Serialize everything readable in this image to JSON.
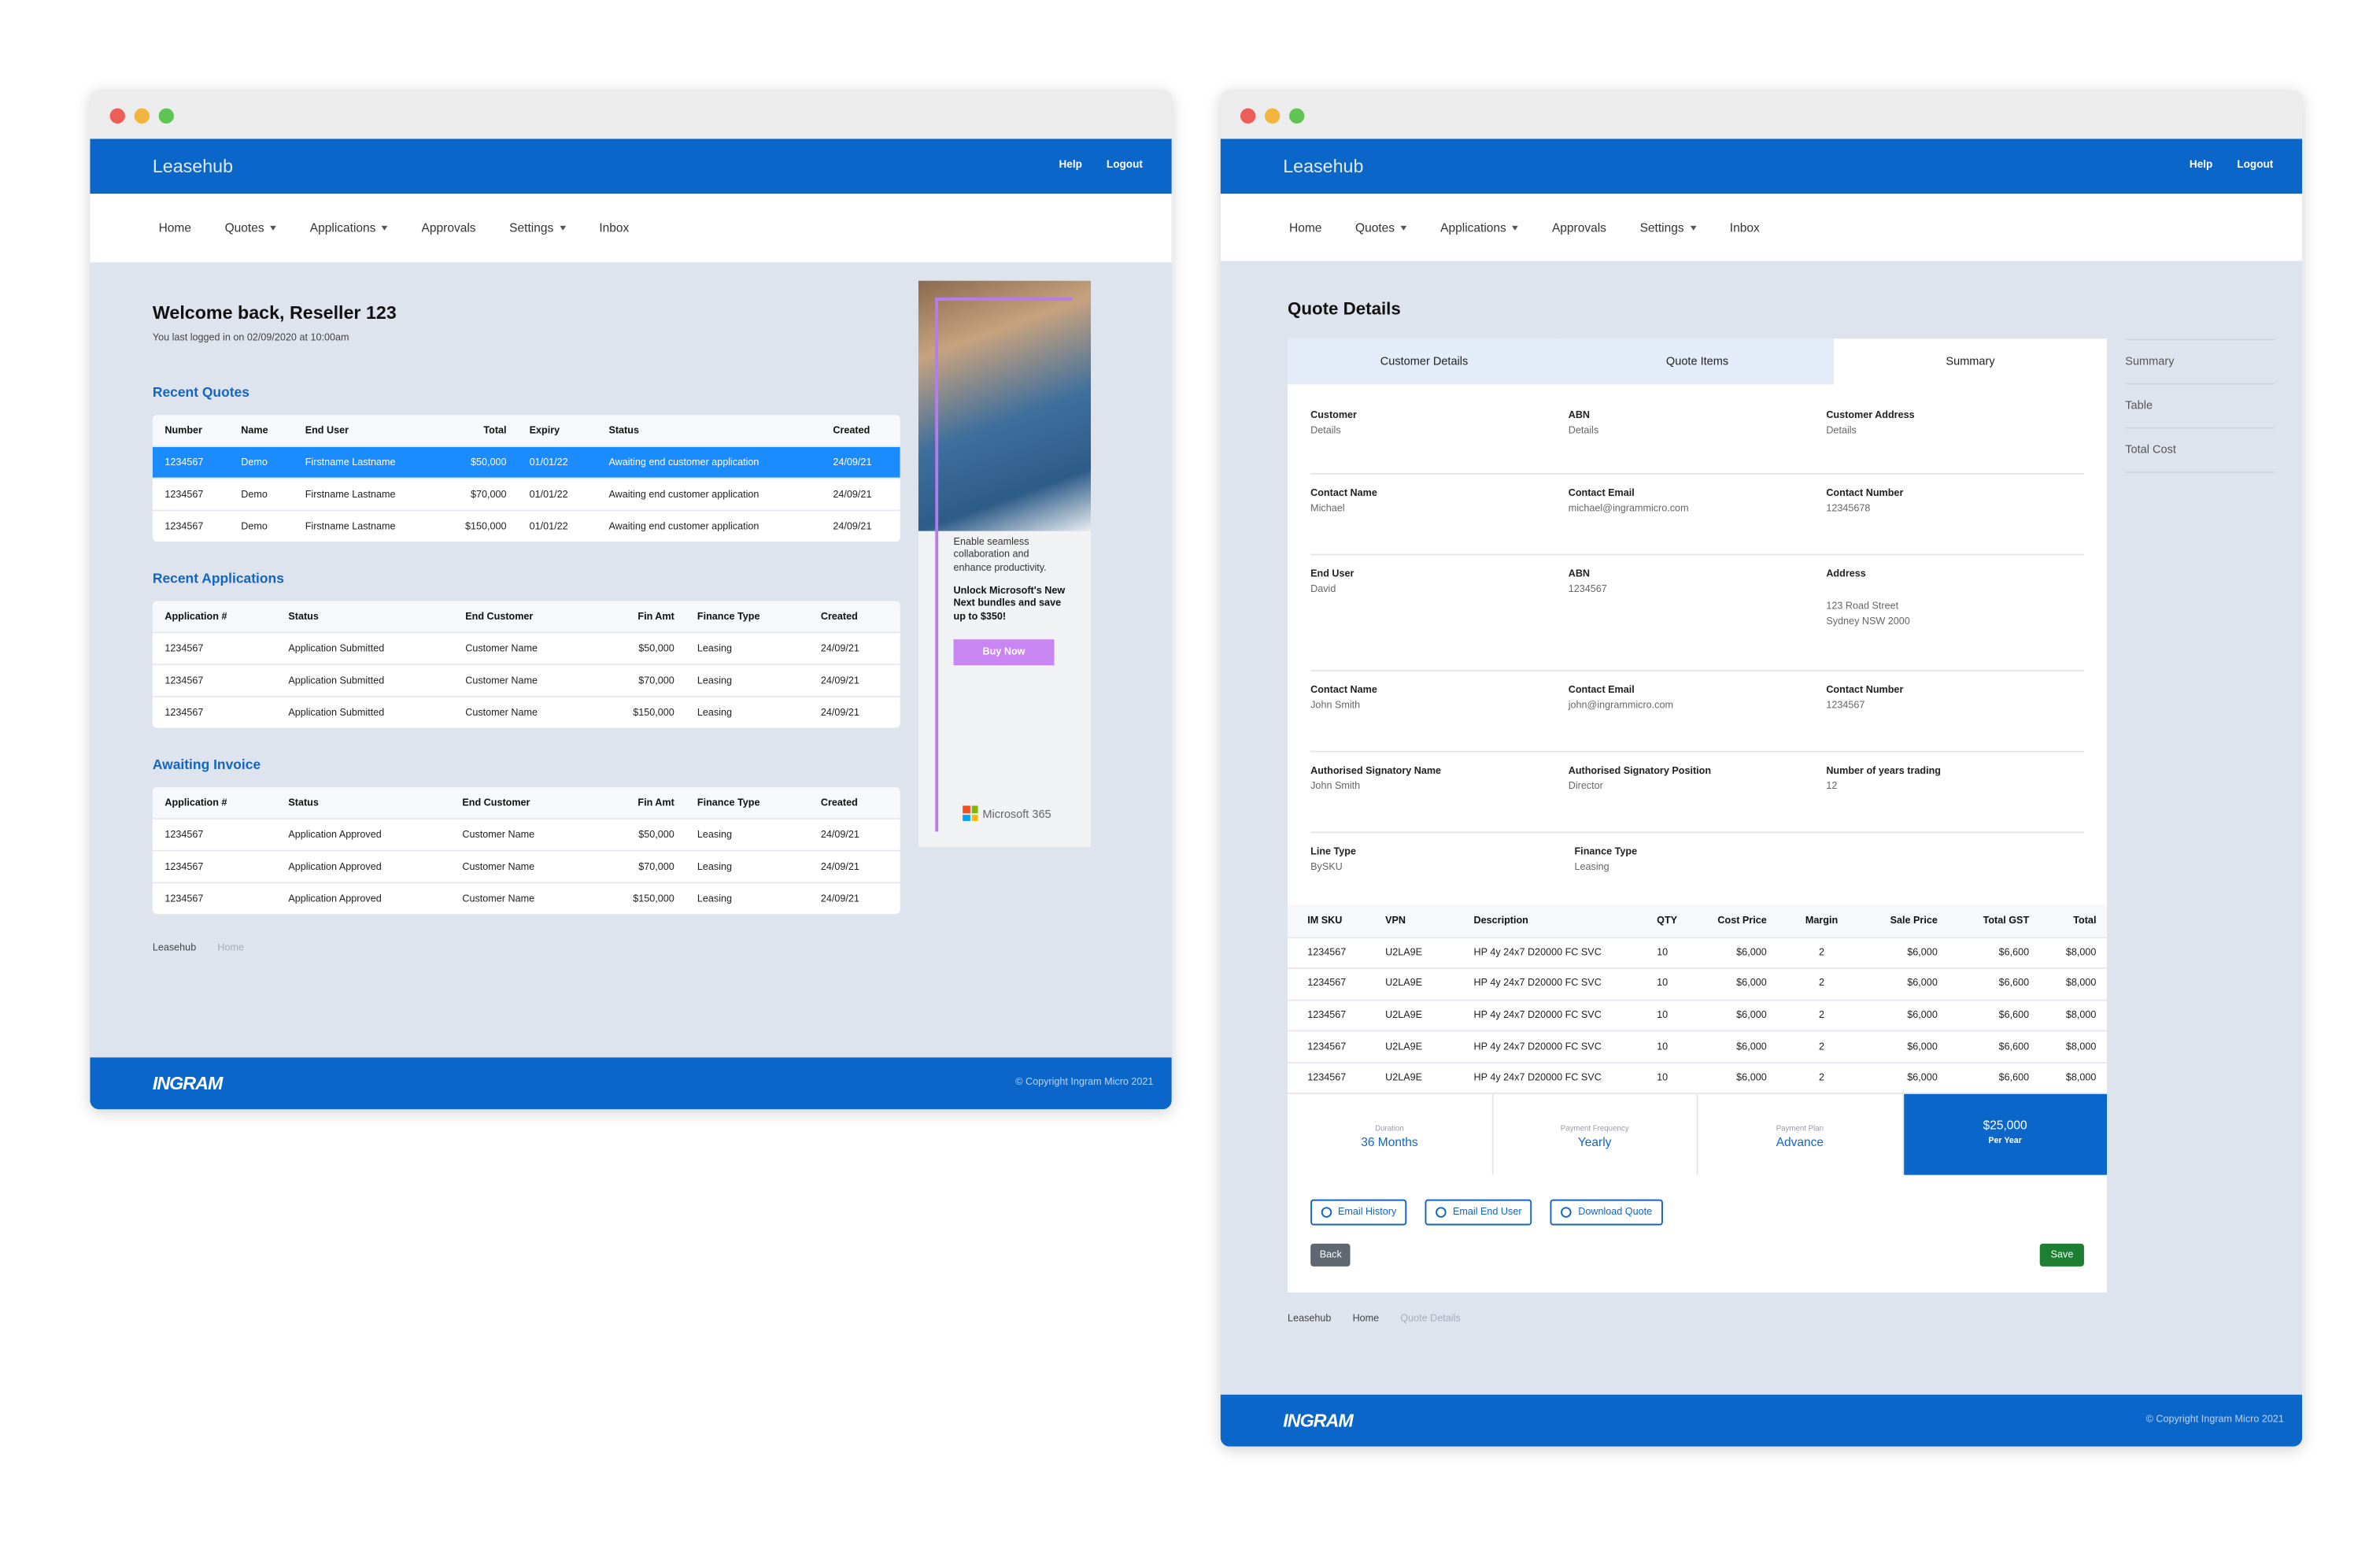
{
  "dashboard": {
    "brand": "Leasehub",
    "header_links": [
      "Help",
      "Logout"
    ],
    "nav": [
      "Home",
      "Quotes",
      "Applications",
      "Approvals",
      "Settings",
      "Inbox"
    ],
    "welcome": "Welcome back, Reseller 123",
    "last_login": "You last logged in on 02/09/2020 at 10:00am",
    "recent_quotes": {
      "title": "Recent Quotes",
      "columns": [
        "Number",
        "Name",
        "End User",
        "Total",
        "Expiry",
        "Status",
        "Created"
      ],
      "rows": [
        [
          "1234567",
          "Demo",
          "Firstname Lastname",
          "$50,000",
          "01/01/22",
          "Awaiting end customer application",
          "24/09/21"
        ],
        [
          "1234567",
          "Demo",
          "Firstname Lastname",
          "$70,000",
          "01/01/22",
          "Awaiting end customer application",
          "24/09/21"
        ],
        [
          "1234567",
          "Demo",
          "Firstname Lastname",
          "$150,000",
          "01/01/22",
          "Awaiting end customer application",
          "24/09/21"
        ]
      ]
    },
    "recent_applications": {
      "title": "Recent Applications",
      "columns": [
        "Application #",
        "Status",
        "End Customer",
        "Fin Amt",
        "Finance Type",
        "Created"
      ],
      "rows": [
        [
          "1234567",
          "Application Submitted",
          "Customer Name",
          "$50,000",
          "Leasing",
          "24/09/21"
        ],
        [
          "1234567",
          "Application Submitted",
          "Customer Name",
          "$70,000",
          "Leasing",
          "24/09/21"
        ],
        [
          "1234567",
          "Application Submitted",
          "Customer Name",
          "$150,000",
          "Leasing",
          "24/09/21"
        ]
      ]
    },
    "awaiting_invoice": {
      "title": "Awaiting Invoice",
      "columns": [
        "Application #",
        "Status",
        "End Customer",
        "Fin Amt",
        "Finance Type",
        "Created"
      ],
      "rows": [
        [
          "1234567",
          "Application Approved",
          "Customer Name",
          "$50,000",
          "Leasing",
          "24/09/21"
        ],
        [
          "1234567",
          "Application Approved",
          "Customer Name",
          "$70,000",
          "Leasing",
          "24/09/21"
        ],
        [
          "1234567",
          "Application Approved",
          "Customer Name",
          "$150,000",
          "Leasing",
          "24/09/21"
        ]
      ]
    },
    "breadcrumb": [
      "Leasehub",
      "Home"
    ],
    "ad": {
      "text": "Enable seamless collaboration and enhance productivity.",
      "offer": "Unlock Microsoft's New Next bundles and save up to $350!",
      "button": "Buy Now",
      "brand": "Microsoft 365"
    },
    "footer": {
      "logo": "INGRAM",
      "copyright": "© Copyright Ingram Micro 2021"
    }
  },
  "quote": {
    "brand": "Leasehub",
    "header_links": [
      "Help",
      "Logout"
    ],
    "nav": [
      "Home",
      "Quotes",
      "Applications",
      "Approvals",
      "Settings",
      "Inbox"
    ],
    "title": "Quote Details",
    "tabs": [
      "Customer Details",
      "Quote Items",
      "Summary"
    ],
    "side_nav": [
      "Summary",
      "Table",
      "Total Cost"
    ],
    "fields": [
      [
        {
          "label": "Customer",
          "value": "Details"
        },
        {
          "label": "ABN",
          "value": "Details"
        },
        {
          "label": "Customer Address",
          "value": "Details"
        }
      ],
      [
        {
          "label": "Contact Name",
          "value": "Michael"
        },
        {
          "label": "Contact Email",
          "value": "michael@ingrammicro.com"
        },
        {
          "label": "Contact Number",
          "value": "12345678"
        }
      ],
      [
        {
          "label": "End User",
          "value": "David"
        },
        {
          "label": "ABN",
          "value": "1234567"
        },
        {
          "label": "Address",
          "lines": [
            "123 Road Street",
            "Sydney NSW 2000"
          ]
        }
      ],
      [
        {
          "label": "Contact Name",
          "value": "John Smith"
        },
        {
          "label": "Contact Email",
          "value": "john@ingrammicro.com"
        },
        {
          "label": "Contact Number",
          "value": "1234567"
        }
      ],
      [
        {
          "label": "Authorised Signatory Name",
          "value": "John Smith"
        },
        {
          "label": "Authorised Signatory Position",
          "value": "Director"
        },
        {
          "label": "Number of years trading",
          "value": "12"
        }
      ],
      [
        {
          "label": "Line Type",
          "value": "BySKU"
        },
        {
          "label": "Finance Type",
          "value": "Leasing"
        }
      ]
    ],
    "items": {
      "columns": [
        "IM SKU",
        "VPN",
        "Description",
        "QTY",
        "Cost Price",
        "Margin",
        "Sale Price",
        "Total GST",
        "Total"
      ],
      "rows": [
        [
          "1234567",
          "U2LA9E",
          "HP 4y 24x7 D20000 FC SVC",
          "10",
          "$6,000",
          "2",
          "$6,000",
          "$6,600",
          "$8,000"
        ],
        [
          "1234567",
          "U2LA9E",
          "HP 4y 24x7 D20000 FC SVC",
          "10",
          "$6,000",
          "2",
          "$6,000",
          "$6,600",
          "$8,000"
        ],
        [
          "1234567",
          "U2LA9E",
          "HP 4y 24x7 D20000 FC SVC",
          "10",
          "$6,000",
          "2",
          "$6,000",
          "$6,600",
          "$8,000"
        ],
        [
          "1234567",
          "U2LA9E",
          "HP 4y 24x7 D20000 FC SVC",
          "10",
          "$6,000",
          "2",
          "$6,000",
          "$6,600",
          "$8,000"
        ],
        [
          "1234567",
          "U2LA9E",
          "HP 4y 24x7 D20000 FC SVC",
          "10",
          "$6,000",
          "2",
          "$6,000",
          "$6,600",
          "$8,000"
        ]
      ]
    },
    "summary": [
      {
        "label": "Duration",
        "value": "36 Months"
      },
      {
        "label": "Payment Frequency",
        "value": "Yearly"
      },
      {
        "label": "Payment Plan",
        "value": "Advance"
      }
    ],
    "total": {
      "value": "$25,000",
      "label": "Per Year"
    },
    "buttons": [
      "Email History",
      "Email End User",
      "Download Quote"
    ],
    "back": "Back",
    "save": "Save",
    "breadcrumb": [
      "Leasehub",
      "Home",
      "Quote Details"
    ],
    "footer": {
      "logo": "INGRAM",
      "copyright": "© Copyright Ingram Micro 2021"
    }
  }
}
